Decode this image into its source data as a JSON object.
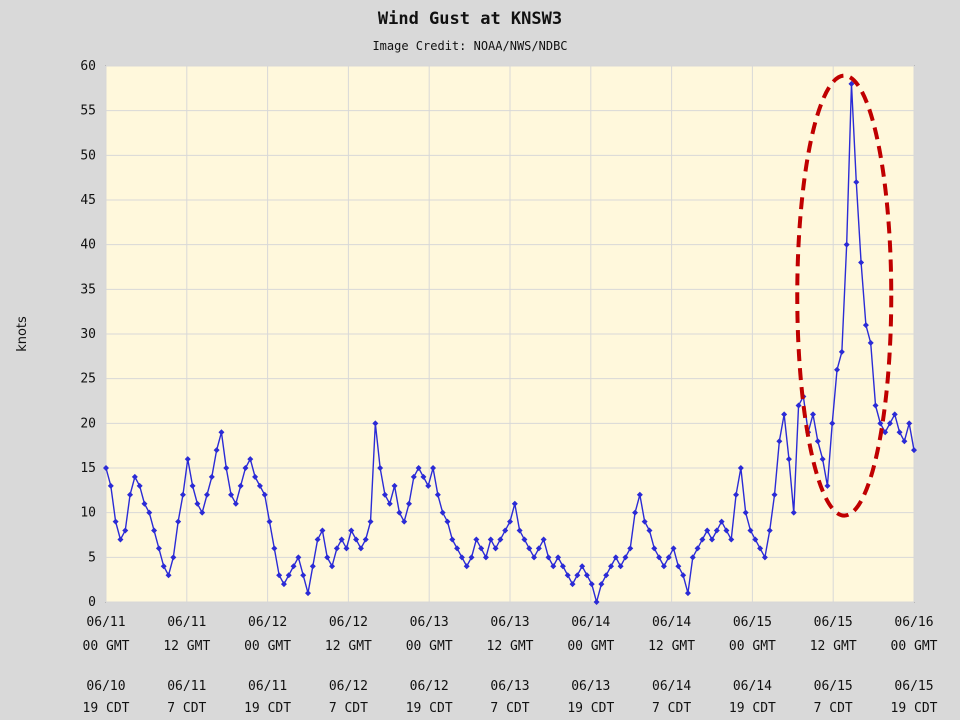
{
  "chart_data": {
    "type": "line",
    "title": "Wind Gust at KNSW3",
    "subtitle": "Image Credit: NOAA/NWS/NDBC",
    "ylabel": "knots",
    "xlabel": "",
    "ylim": [
      0,
      60
    ],
    "yticks": [
      0,
      5,
      10,
      15,
      20,
      25,
      30,
      35,
      40,
      45,
      50,
      55,
      60
    ],
    "grid": true,
    "xticks_gmt": [
      [
        "06/11",
        "00 GMT"
      ],
      [
        "06/11",
        "12 GMT"
      ],
      [
        "06/12",
        "00 GMT"
      ],
      [
        "06/12",
        "12 GMT"
      ],
      [
        "06/13",
        "00 GMT"
      ],
      [
        "06/13",
        "12 GMT"
      ],
      [
        "06/14",
        "00 GMT"
      ],
      [
        "06/14",
        "12 GMT"
      ],
      [
        "06/15",
        "00 GMT"
      ],
      [
        "06/15",
        "12 GMT"
      ],
      [
        "06/16",
        "00 GMT"
      ]
    ],
    "xticks_cdt": [
      [
        "06/10",
        "19 CDT"
      ],
      [
        "06/11",
        "7 CDT"
      ],
      [
        "06/11",
        "19 CDT"
      ],
      [
        "06/12",
        "7 CDT"
      ],
      [
        "06/12",
        "19 CDT"
      ],
      [
        "06/13",
        "7 CDT"
      ],
      [
        "06/13",
        "19 CDT"
      ],
      [
        "06/14",
        "7 CDT"
      ],
      [
        "06/14",
        "19 CDT"
      ],
      [
        "06/15",
        "7 CDT"
      ],
      [
        "06/15",
        "19 CDT"
      ]
    ],
    "series": [
      {
        "color": "#2b2bd6",
        "x_hours_since_0611_00GMT": [
          0,
          1,
          2,
          3,
          4,
          5,
          6,
          7,
          8,
          9,
          10,
          11,
          12,
          13,
          14,
          15,
          16,
          17,
          18,
          19,
          20,
          21,
          22,
          23,
          24,
          25,
          26,
          27,
          28,
          29,
          30,
          31,
          32,
          33,
          34,
          35,
          36,
          37,
          38,
          39,
          40,
          41,
          42,
          43,
          44,
          45,
          46,
          47,
          48,
          49,
          50,
          51,
          52,
          53,
          54,
          55,
          56,
          57,
          58,
          59,
          60,
          61,
          62,
          63,
          64,
          65,
          66,
          67,
          68,
          69,
          70,
          71,
          72,
          73,
          74,
          75,
          76,
          77,
          78,
          79,
          80,
          81,
          82,
          83,
          84,
          85,
          86,
          87,
          88,
          89,
          90,
          91,
          92,
          93,
          94,
          95,
          96,
          97,
          98,
          99,
          100,
          101,
          102,
          103,
          104,
          105,
          106,
          107,
          108,
          109,
          110,
          111,
          112,
          113,
          114,
          115,
          116,
          117,
          118,
          119,
          120,
          121,
          122,
          123,
          124,
          125,
          126,
          127,
          128,
          129,
          130,
          131,
          132,
          133,
          134,
          135,
          136,
          137,
          138,
          139,
          140,
          141,
          142,
          143,
          144,
          145,
          146,
          147,
          148,
          149,
          150,
          151,
          152,
          153,
          154,
          155,
          156,
          157,
          158,
          159,
          160,
          161,
          162,
          163,
          164,
          165,
          166,
          167,
          168
        ],
        "values": [
          15,
          13,
          9,
          7,
          8,
          12,
          14,
          13,
          11,
          10,
          8,
          6,
          4,
          3,
          5,
          9,
          12,
          16,
          13,
          11,
          10,
          12,
          14,
          17,
          19,
          15,
          12,
          11,
          13,
          15,
          16,
          14,
          13,
          12,
          9,
          6,
          3,
          2,
          3,
          4,
          5,
          3,
          1,
          4,
          7,
          8,
          5,
          4,
          6,
          7,
          6,
          8,
          7,
          6,
          7,
          9,
          20,
          15,
          12,
          11,
          13,
          10,
          9,
          11,
          14,
          15,
          14,
          13,
          15,
          12,
          10,
          9,
          7,
          6,
          5,
          4,
          5,
          7,
          6,
          5,
          7,
          6,
          7,
          8,
          9,
          11,
          8,
          7,
          6,
          5,
          6,
          7,
          5,
          4,
          5,
          4,
          3,
          2,
          3,
          4,
          3,
          2,
          0,
          2,
          3,
          4,
          5,
          4,
          5,
          6,
          10,
          12,
          9,
          8,
          6,
          5,
          4,
          5,
          6,
          4,
          3,
          1,
          5,
          6,
          7,
          8,
          7,
          8,
          9,
          8,
          7,
          12,
          15,
          10,
          8,
          7,
          6,
          5,
          8,
          12,
          18,
          21,
          16,
          10,
          22,
          23,
          19,
          21,
          18,
          16,
          13,
          20,
          26,
          28,
          40,
          58,
          47,
          38,
          31,
          29,
          22,
          20,
          19,
          20,
          21,
          19,
          18,
          20,
          17
        ]
      }
    ],
    "annotations": [
      {
        "type": "dashed-ellipse",
        "color": "#c00000",
        "note": "highlights peak gust"
      }
    ]
  }
}
